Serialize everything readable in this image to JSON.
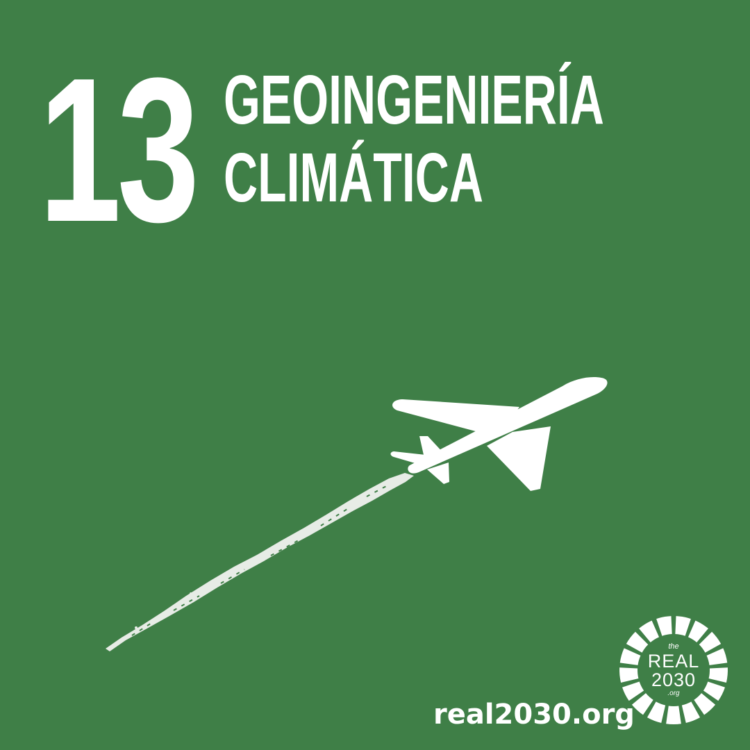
{
  "colors": {
    "background": "#3f7f47",
    "foreground": "#ffffff",
    "contrail": "#e7ece6"
  },
  "goal": {
    "number": "13",
    "title_line_1": "GEOINGENIERÍA",
    "title_line_2": "CLIMÁTICA"
  },
  "illustration": {
    "icons": [
      "airplane-icon",
      "contrail"
    ]
  },
  "footer": {
    "website": "real2030.org"
  },
  "logo": {
    "the": "the",
    "line_1": "REAL",
    "line_2": "2030",
    "suffix": ".org"
  }
}
